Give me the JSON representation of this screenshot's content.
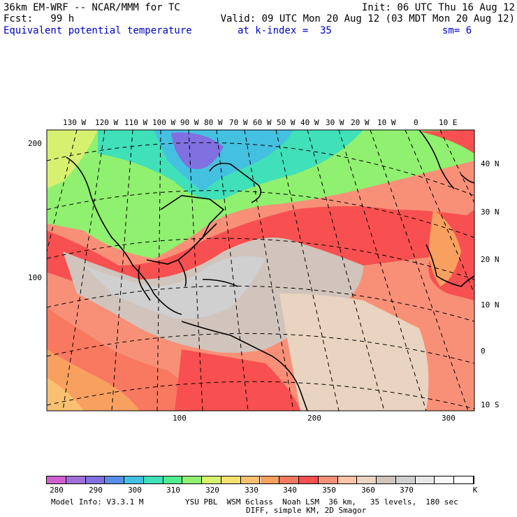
{
  "header": {
    "model": "36km EM-WRF -- NCAR/MMM for TC",
    "init": "Init: 06 UTC Thu 16 Aug 12",
    "fcst": "Fcst:   99 h",
    "valid": "Valid: 09 UTC Mon 20 Aug 12 (03 MDT Mon 20 Aug 12)",
    "field": "Equivalent potential temperature",
    "level": "at k-index =  35",
    "smooth": "sm= 6"
  },
  "axes": {
    "top_lon_labels": [
      "130 W",
      "120 W",
      "110 W",
      "100 W",
      "90 W",
      "80 W",
      "70 W",
      "60 W",
      "50 W",
      "40 W",
      "30 W",
      "20 W",
      "10 W",
      "0",
      "10 E"
    ],
    "right_lat_labels": [
      "40 N",
      "30 N",
      "20 N",
      "10 N",
      "0",
      "10 S"
    ],
    "left_grid_labels": [
      "200",
      "100"
    ],
    "bottom_grid_labels": [
      "100",
      "200",
      "300"
    ]
  },
  "colorbar": {
    "colors": [
      "#d060d0",
      "#a070d8",
      "#8070e0",
      "#5a8ee6",
      "#44c0e0",
      "#40e0b8",
      "#50ee90",
      "#90f070",
      "#d8f070",
      "#f8e070",
      "#f8c070",
      "#f8a060",
      "#f87860",
      "#f85050",
      "#f89078",
      "#f8c4a8",
      "#e8d4c0",
      "#d0c4bc",
      "#d0d0d0",
      "#e8e8e8",
      "#f8f8f8",
      "#ffffff"
    ],
    "labels": [
      "280",
      "290",
      "300",
      "310",
      "320",
      "330",
      "340",
      "350",
      "360",
      "370",
      "K"
    ]
  },
  "footer": {
    "line1_left": "Model Info: V3.3.1 M",
    "line1_right": "YSU PBL  WSM 6class  Noah LSM  36 km,   35 levels,  180 sec",
    "line2": "DIFF, simple KM, 2D Smagor"
  }
}
